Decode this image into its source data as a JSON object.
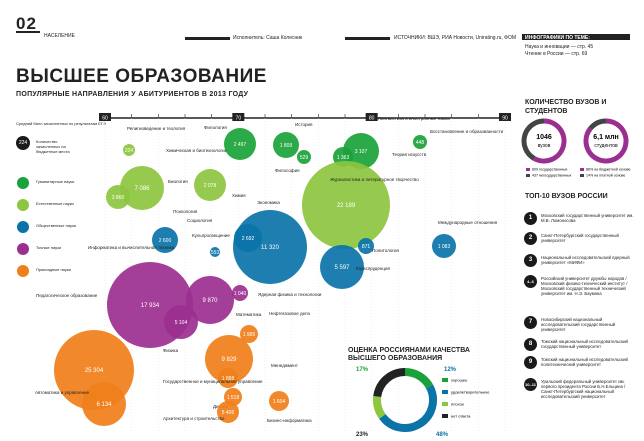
{
  "header": {
    "number": "02",
    "section": "НАСЕЛЕНИЕ",
    "author": "Исполнитель: Саша Колесник",
    "sources": "ИСТОЧНИКИ: ВШЭ, РИА Новости, Unirating.ru, ФОМ",
    "info_title": "ИНФОГРАФИКИ ПО ТЕМЕ:",
    "info_items": [
      "Наука и инновации — стр. 45",
      "Чтение в России — стр. 69"
    ]
  },
  "title": "ВЫСШЕЕ ОБРАЗОВАНИЕ",
  "subtitle": "ПОПУЛЯРНЫЕ НАПРАВЛЕНИЯ У АБИТУРИЕНТОВ В 2013 ГОДУ",
  "score_note": "Средний балл зачисленных по результатам ЕГЭ",
  "legend": {
    "count_value": "224",
    "count_label": "Количество зачисленных на бюджетные места",
    "groups": [
      {
        "label": "Гуманитарные науки",
        "color": "#1aa23a"
      },
      {
        "label": "Естественные науки",
        "color": "#8dc63f"
      },
      {
        "label": "Общественные науки",
        "color": "#0a73a8"
      },
      {
        "label": "Точные науки",
        "color": "#9b2f8f"
      },
      {
        "label": "Прикладные науки",
        "color": "#f07f1a"
      }
    ]
  },
  "chart_data": {
    "type": "scatter",
    "title": "ПОПУЛЯРНЫЕ НАПРАВЛЕНИЯ У АБИТУРИЕНТОВ В 2013 ГОДУ",
    "xlabel": "Средний балл зачисленных по результатам ЕГЭ",
    "xlim": [
      60,
      90
    ],
    "xticks": [
      60,
      70,
      80,
      90
    ],
    "xtick_labels": [
      "60",
      "70",
      "80",
      "90"
    ],
    "grid": true,
    "size_meaning": "Количество зачисленных на бюджетные места",
    "points": [
      {
        "name": "Религиоведение и теология",
        "value": 224,
        "group": "Естественные",
        "color": "#8dc63f"
      },
      {
        "name": "Химическая и биотехнологии",
        "value": 7086,
        "group": "Естественные",
        "color": "#8dc63f"
      },
      {
        "name": "",
        "value": 3860,
        "group": "Естественные",
        "color": "#8dc63f"
      },
      {
        "name": "Биология",
        "value": 2078,
        "group": "Естественные",
        "color": "#8dc63f"
      },
      {
        "name": "Химия",
        "value": 0,
        "group": "Естественные",
        "color": "#8dc63f"
      },
      {
        "name": "Филология",
        "value": 2497,
        "group": "Гуманитарные",
        "color": "#1aa23a"
      },
      {
        "name": "История",
        "value": 1809,
        "group": "Гуманитарные",
        "color": "#1aa23a"
      },
      {
        "name": "Философия",
        "value": 529,
        "group": "Гуманитарные",
        "color": "#1aa23a"
      },
      {
        "name": "Лингвистика и иностранные языки",
        "value": 3107,
        "group": "Гуманитарные",
        "color": "#1aa23a"
      },
      {
        "name": "Теория искусств",
        "value": 1363,
        "group": "Гуманитарные",
        "color": "#1aa23a"
      },
      {
        "name": "Восстановление и образованности",
        "value": 448,
        "group": "Гуманитарные",
        "color": "#1aa23a"
      },
      {
        "name": "Журналистика и литературное творчество",
        "value": 22189,
        "group": "Естественные",
        "color": "#8dc63f"
      },
      {
        "name": "Кульпросвещение",
        "value": 553,
        "group": "Общественные",
        "color": "#0a73a8"
      },
      {
        "name": "Психология",
        "value": 2600,
        "group": "Общественные",
        "color": "#0a73a8"
      },
      {
        "name": "Экономика",
        "value": 11320,
        "group": "Общественные",
        "color": "#0a73a8"
      },
      {
        "name": "Социология",
        "value": 2692,
        "group": "Общественные",
        "color": "#0a73a8"
      },
      {
        "name": "Политология",
        "value": 871,
        "group": "Общественные",
        "color": "#0a73a8"
      },
      {
        "name": "Юриспруденция",
        "value": 5597,
        "group": "Общественные",
        "color": "#0a73a8"
      },
      {
        "name": "Международные отношения",
        "value": 1083,
        "group": "Общественные",
        "color": "#0a73a8"
      },
      {
        "name": "Информатика и вычислительная техника",
        "value": 17934,
        "group": "Точные",
        "color": "#9b2f8f"
      },
      {
        "name": "",
        "value": 9870,
        "group": "Точные",
        "color": "#9b2f8f"
      },
      {
        "name": "Ядерная физика и технологии",
        "value": 1040,
        "group": "Точные",
        "color": "#9b2f8f"
      },
      {
        "name": "Математика",
        "value": 5104,
        "group": "Точные",
        "color": "#9b2f8f"
      },
      {
        "name": "Педагогическое образование",
        "value": 25304,
        "group": "Прикладные",
        "color": "#f07f1a"
      },
      {
        "name": "Автоматика и управление",
        "value": 6134,
        "group": "Прикладные",
        "color": "#f07f1a"
      },
      {
        "name": "Физика",
        "value": 9829,
        "group": "Прикладные",
        "color": "#f07f1a"
      },
      {
        "name": "Нефтегазовое дело",
        "value": 1985,
        "group": "Прикладные",
        "color": "#f07f1a"
      },
      {
        "name": "Государственное и муниципальное управление",
        "value": 1888,
        "group": "Прикладные",
        "color": "#f07f1a"
      },
      {
        "name": "Дизайн",
        "value": 1518,
        "group": "Прикладные",
        "color": "#f07f1a"
      },
      {
        "name": "Архитектура и строительство",
        "value": 5406,
        "group": "Прикладные",
        "color": "#f07f1a"
      },
      {
        "name": "Менеджмент",
        "value": 0,
        "group": "Прикладные",
        "color": "#f07f1a"
      },
      {
        "name": "Бизнес-информатика",
        "value": 1604,
        "group": "Прикладные",
        "color": "#f07f1a"
      }
    ]
  },
  "stats": {
    "title": "КОЛИЧЕСТВО ВУЗОВ И СТУДЕНТОВ",
    "vuz_value": "1046",
    "vuz_unit": "вузов",
    "students_value": "6,1 млн",
    "students_unit": "студентов",
    "legend_left": [
      "609 государственных",
      "437 негосударственных"
    ],
    "legend_right": [
      "86% на бюджетной основе",
      "14% на платной основе"
    ]
  },
  "top10": {
    "title": "ТОП-10 ВУЗОВ РОССИИ",
    "items": [
      {
        "rank": "1",
        "name": "Московский государственный университет им. М.В. Ломоносова"
      },
      {
        "rank": "2",
        "name": "Санкт-Петербургский государственный университет"
      },
      {
        "rank": "3",
        "name": "Национальный исследовательский ядерный университет «МИФИ»"
      },
      {
        "rank": "4–6",
        "name": "Российский университет дружбы народов / Московский физико-технический институт / Московский государственный технический университет им. Н.Э. Баумана"
      },
      {
        "rank": "7",
        "name": "Новосибирский национальный исследовательский государственный университет"
      },
      {
        "rank": "8",
        "name": "Томский национальный исследовательский государственный университет"
      },
      {
        "rank": "9",
        "name": "Томский национальный исследовательский политехнический университет"
      },
      {
        "rank": "10–11",
        "name": "Уральский федеральный университет им. первого президента России Б.Н.Ельцина / Санкт-Петербургский национальный исследовательский университет"
      }
    ]
  },
  "rating": {
    "title": "ОЦЕНКА РОССИЯНАМИ КАЧЕСТВА ВЫСШЕГО ОБРАЗОВАНИЯ",
    "segments": [
      {
        "label": "хорошее",
        "value": 17,
        "color": "#1aa23a"
      },
      {
        "label": "удовлетворительное",
        "value": 48,
        "color": "#0a73a8"
      },
      {
        "label": "плохое",
        "value": 12,
        "color": "#8dc63f"
      },
      {
        "label": "нет ответа",
        "value": 23,
        "color": "#222222"
      }
    ],
    "values_text": [
      "17%",
      "12%",
      "23%",
      "48%"
    ]
  }
}
